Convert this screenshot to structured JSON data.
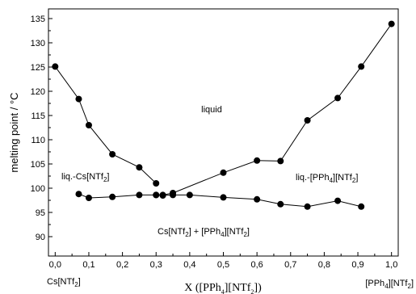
{
  "chart_data": {
    "type": "scatter",
    "xlabel": "X ([PPh4][NTf2])",
    "ylabel": "melting point / °C",
    "xlim": [
      -0.02,
      1.02
    ],
    "ylim": [
      86,
      137
    ],
    "x_ticks": [
      0.0,
      0.1,
      0.2,
      0.3,
      0.4,
      0.5,
      0.6,
      0.7,
      0.8,
      0.9,
      1.0
    ],
    "x_tick_labels": [
      "0,0",
      "0,1",
      "0,2",
      "0,3",
      "0,4",
      "0,5",
      "0,6",
      "0,7",
      "0,8",
      "0,9",
      "1,0"
    ],
    "y_ticks": [
      90,
      95,
      100,
      105,
      110,
      115,
      120,
      125,
      130,
      135
    ],
    "y_tick_labels": [
      "90",
      "95",
      "100",
      "105",
      "110",
      "115",
      "120",
      "125",
      "130",
      "135"
    ],
    "grid": false,
    "series": [
      {
        "x": [
          0.0,
          0.07,
          0.1,
          0.17,
          0.25,
          0.3
        ],
        "y": [
          125.1,
          118.4,
          113.0,
          107.0,
          104.3,
          101.0
        ],
        "connected": true
      },
      {
        "x": [
          0.3,
          0.32,
          0.35,
          0.5,
          0.6,
          0.67,
          0.75,
          0.84,
          0.91,
          1.0
        ],
        "y": [
          98.6,
          98.6,
          99.0,
          103.2,
          105.7,
          105.6,
          114.0,
          118.6,
          125.1,
          133.9
        ],
        "connected": true
      },
      {
        "x": [
          0.07,
          0.1,
          0.17,
          0.25,
          0.3,
          0.32,
          0.35,
          0.4,
          0.5,
          0.6,
          0.67,
          0.75,
          0.84,
          0.91
        ],
        "y": [
          98.8,
          98.0,
          98.2,
          98.6,
          98.6,
          98.5,
          98.6,
          98.6,
          98.1,
          97.7,
          96.7,
          96.2,
          97.4,
          96.2
        ],
        "connected": true
      }
    ],
    "annotations": {
      "liquid": "liquid",
      "liq_cs_main": "liq.-Cs[NTf",
      "liq_cs_sub": "2",
      "liq_cs_end": "]",
      "liq_pph4_a": "liq.-[PPh",
      "liq_pph4_sub1": "4",
      "liq_pph4_b": "][NTf",
      "liq_pph4_sub2": "2",
      "liq_pph4_end": "]",
      "solid_a": "Cs[NTf",
      "solid_sub1": "2",
      "solid_b": "] + [PPh",
      "solid_sub2": "4",
      "solid_c": "][NTf",
      "solid_sub3": "2",
      "solid_end": "]",
      "left_end_a": "Cs[NTf",
      "left_end_sub": "2",
      "left_end_end": "]",
      "right_end_a": "[PPh",
      "right_end_sub1": "4",
      "right_end_b": "][NTf",
      "right_end_sub2": "2",
      "right_end_end": "]"
    },
    "xlabel_parts": {
      "a": "X ([PPh",
      "sub1": "4",
      "b": "][NTf",
      "sub2": "2",
      "c": "])"
    }
  }
}
